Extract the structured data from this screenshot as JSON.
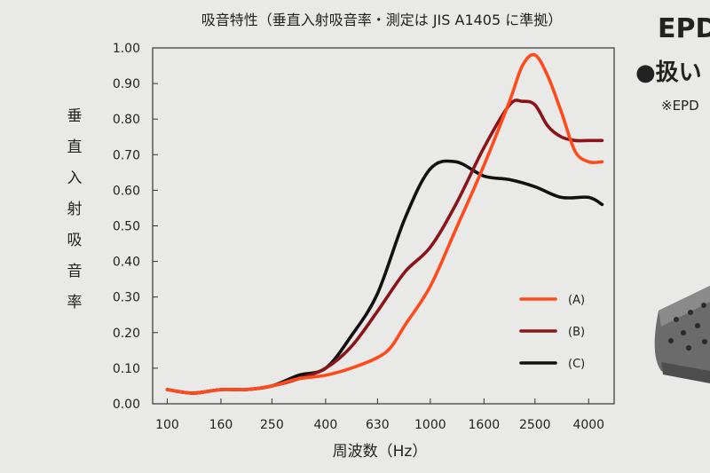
{
  "chart_data": {
    "type": "line",
    "title": "吸音特性（垂直入射吸音率・測定は JIS A1405 に準拠）",
    "ylabel": "垂直入射吸音率",
    "xlabel": "周波数（Hz）",
    "x_scale": "log",
    "xlim": [
      88,
      5000
    ],
    "ylim": [
      0,
      1
    ],
    "grid": false,
    "legend_position": "bottom-right",
    "x_ticks": [
      100,
      160,
      250,
      400,
      630,
      1000,
      1600,
      2500,
      4000
    ],
    "x_tick_labels": [
      "100",
      "160",
      "250",
      "400",
      "630",
      "1000",
      "1600",
      "2500",
      "4000"
    ],
    "y_ticks": [
      0,
      0.1,
      0.2,
      0.3,
      0.4,
      0.5,
      0.6,
      0.7,
      0.8,
      0.9,
      1.0
    ],
    "y_tick_labels": [
      "0.00",
      "0.10",
      "0.20",
      "0.30",
      "0.40",
      "0.50",
      "0.60",
      "0.70",
      "0.80",
      "0.90",
      "1.00"
    ],
    "series": [
      {
        "name": "(A)",
        "color": "#ff4a1c",
        "x": [
          100,
          125,
          160,
          200,
          250,
          315,
          400,
          500,
          630,
          710,
          800,
          1000,
          1250,
          1600,
          2000,
          2240,
          2500,
          2800,
          3150,
          3550,
          4000,
          4500
        ],
        "y": [
          0.04,
          0.03,
          0.04,
          0.04,
          0.05,
          0.07,
          0.08,
          0.1,
          0.13,
          0.16,
          0.22,
          0.33,
          0.49,
          0.67,
          0.85,
          0.95,
          0.98,
          0.92,
          0.82,
          0.71,
          0.68,
          0.68
        ]
      },
      {
        "name": "(B)",
        "color": "#8a1419",
        "x": [
          100,
          125,
          160,
          200,
          250,
          315,
          400,
          500,
          630,
          800,
          1000,
          1250,
          1600,
          2000,
          2240,
          2500,
          2800,
          3150,
          3550,
          4000,
          4500
        ],
        "y": [
          0.04,
          0.03,
          0.04,
          0.04,
          0.05,
          0.07,
          0.1,
          0.16,
          0.26,
          0.37,
          0.44,
          0.56,
          0.72,
          0.84,
          0.85,
          0.84,
          0.78,
          0.75,
          0.74,
          0.74,
          0.74
        ]
      },
      {
        "name": "(C)",
        "color": "#111111",
        "x": [
          100,
          125,
          160,
          200,
          250,
          315,
          400,
          500,
          630,
          800,
          1000,
          1250,
          1600,
          2000,
          2500,
          3150,
          4000,
          4500
        ],
        "y": [
          0.04,
          0.03,
          0.04,
          0.04,
          0.05,
          0.08,
          0.1,
          0.19,
          0.31,
          0.52,
          0.66,
          0.68,
          0.64,
          0.63,
          0.61,
          0.58,
          0.58,
          0.56
        ]
      }
    ]
  },
  "side_panel": {
    "heading_text": "EPD",
    "bullet_text": "●扱い",
    "note_text": "※EPD"
  }
}
